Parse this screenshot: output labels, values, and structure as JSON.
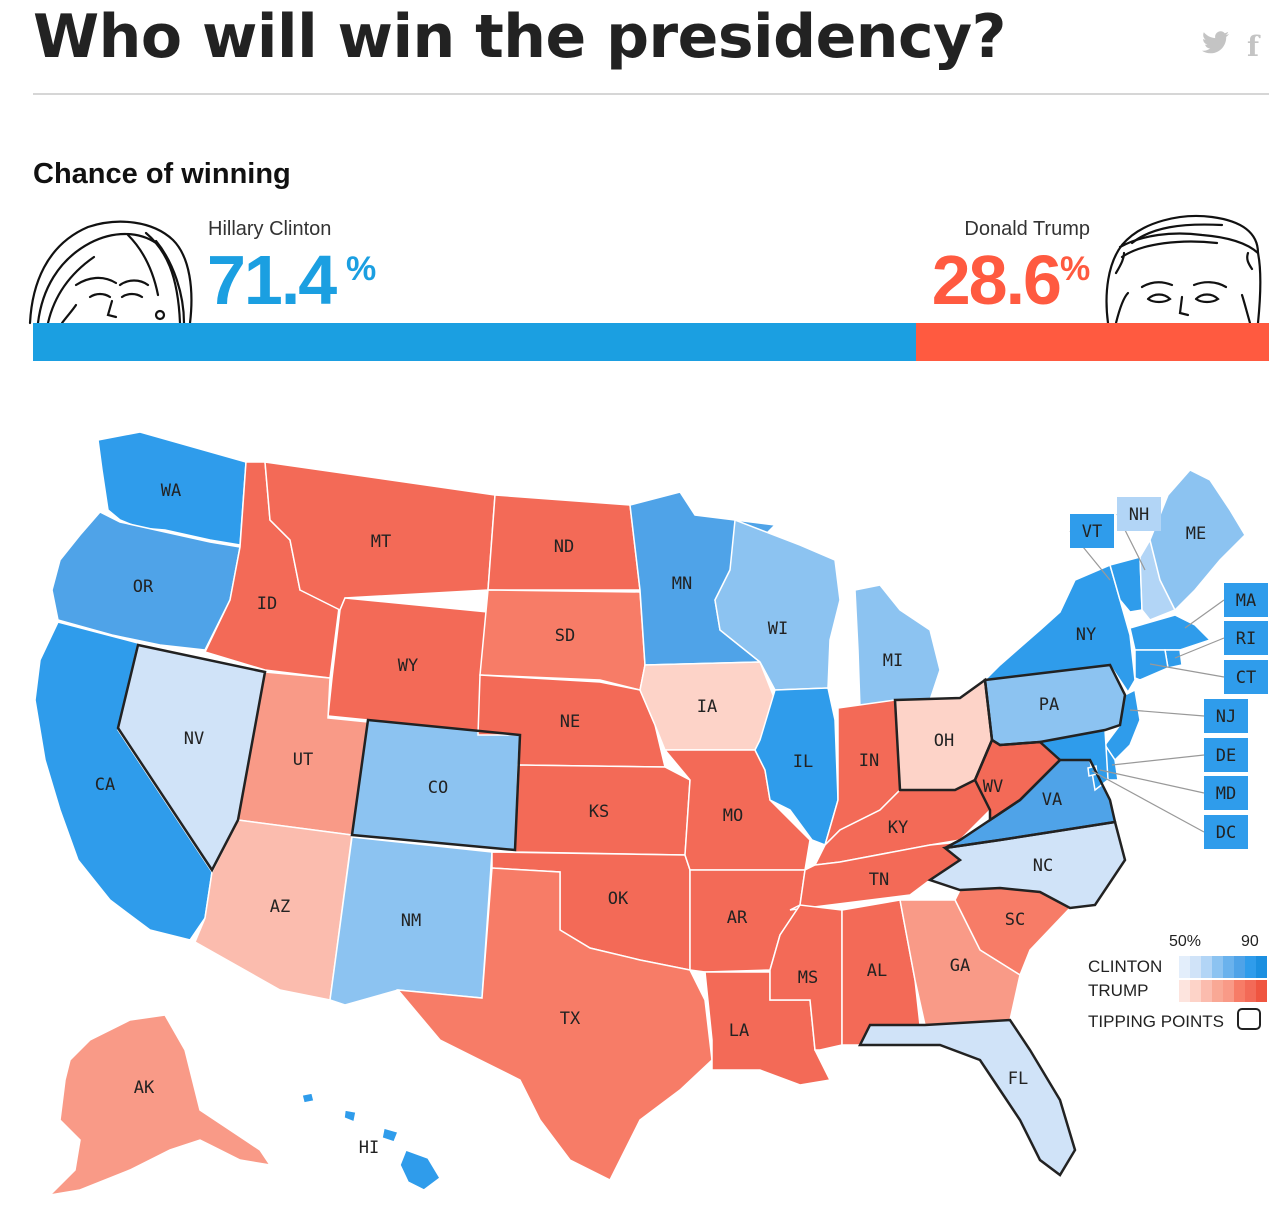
{
  "header": {
    "title": "Who will win the presidency?",
    "share_twitter_icon": "twitter-icon",
    "share_facebook_icon": "facebook-icon",
    "facebook_glyph": "f"
  },
  "chance": {
    "section_title": "Chance of winning",
    "clinton": {
      "name": "Hillary Clinton",
      "value": "71.4",
      "percent_sign": "%",
      "fraction": 0.714,
      "color": "#1b9fe1"
    },
    "trump": {
      "name": "Donald Trump",
      "value": "28.6",
      "percent_sign": "%",
      "fraction": 0.286,
      "color": "#ff5a40"
    }
  },
  "map": {
    "states": [
      {
        "abbr": "WA",
        "party": "D",
        "shade": 5
      },
      {
        "abbr": "OR",
        "party": "D",
        "shade": 4
      },
      {
        "abbr": "CA",
        "party": "D",
        "shade": 5
      },
      {
        "abbr": "NV",
        "party": "D",
        "shade": 1,
        "tipping": true
      },
      {
        "abbr": "ID",
        "party": "R",
        "shade": 5
      },
      {
        "abbr": "MT",
        "party": "R",
        "shade": 5
      },
      {
        "abbr": "WY",
        "party": "R",
        "shade": 5
      },
      {
        "abbr": "UT",
        "party": "R",
        "shade": 3
      },
      {
        "abbr": "AZ",
        "party": "R",
        "shade": 2
      },
      {
        "abbr": "CO",
        "party": "D",
        "shade": 3,
        "tipping": true
      },
      {
        "abbr": "NM",
        "party": "D",
        "shade": 3
      },
      {
        "abbr": "ND",
        "party": "R",
        "shade": 5
      },
      {
        "abbr": "SD",
        "party": "R",
        "shade": 4
      },
      {
        "abbr": "NE",
        "party": "R",
        "shade": 5
      },
      {
        "abbr": "KS",
        "party": "R",
        "shade": 5
      },
      {
        "abbr": "OK",
        "party": "R",
        "shade": 5
      },
      {
        "abbr": "TX",
        "party": "R",
        "shade": 4
      },
      {
        "abbr": "MN",
        "party": "D",
        "shade": 4
      },
      {
        "abbr": "IA",
        "party": "R",
        "shade": 1
      },
      {
        "abbr": "MO",
        "party": "R",
        "shade": 5
      },
      {
        "abbr": "AR",
        "party": "R",
        "shade": 5
      },
      {
        "abbr": "LA",
        "party": "R",
        "shade": 5
      },
      {
        "abbr": "WI",
        "party": "D",
        "shade": 3
      },
      {
        "abbr": "IL",
        "party": "D",
        "shade": 5
      },
      {
        "abbr": "MI",
        "party": "D",
        "shade": 3
      },
      {
        "abbr": "IN",
        "party": "R",
        "shade": 5
      },
      {
        "abbr": "OH",
        "party": "R",
        "shade": 1,
        "tipping": true
      },
      {
        "abbr": "KY",
        "party": "R",
        "shade": 5
      },
      {
        "abbr": "TN",
        "party": "R",
        "shade": 5
      },
      {
        "abbr": "MS",
        "party": "R",
        "shade": 5
      },
      {
        "abbr": "AL",
        "party": "R",
        "shade": 5
      },
      {
        "abbr": "WV",
        "party": "R",
        "shade": 5,
        "tipping": true
      },
      {
        "abbr": "VA",
        "party": "D",
        "shade": 4,
        "tipping": true
      },
      {
        "abbr": "NC",
        "party": "D",
        "shade": 1,
        "tipping": true
      },
      {
        "abbr": "SC",
        "party": "R",
        "shade": 4
      },
      {
        "abbr": "GA",
        "party": "R",
        "shade": 3
      },
      {
        "abbr": "FL",
        "party": "D",
        "shade": 1,
        "tipping": true
      },
      {
        "abbr": "PA",
        "party": "D",
        "shade": 3,
        "tipping": true
      },
      {
        "abbr": "NY",
        "party": "D",
        "shade": 5
      },
      {
        "abbr": "VT",
        "party": "D",
        "shade": 5
      },
      {
        "abbr": "NH",
        "party": "D",
        "shade": 2
      },
      {
        "abbr": "ME",
        "party": "D",
        "shade": 3
      },
      {
        "abbr": "MA",
        "party": "D",
        "shade": 5
      },
      {
        "abbr": "RI",
        "party": "D",
        "shade": 5
      },
      {
        "abbr": "CT",
        "party": "D",
        "shade": 5
      },
      {
        "abbr": "NJ",
        "party": "D",
        "shade": 5
      },
      {
        "abbr": "DE",
        "party": "D",
        "shade": 5
      },
      {
        "abbr": "MD",
        "party": "D",
        "shade": 5
      },
      {
        "abbr": "DC",
        "party": "D",
        "shade": 5
      },
      {
        "abbr": "AK",
        "party": "R",
        "shade": 3
      },
      {
        "abbr": "HI",
        "party": "D",
        "shade": 5
      }
    ],
    "colors": {
      "D": [
        "#e3eefb",
        "#d0e3f8",
        "#b2d5f6",
        "#8cc3f1",
        "#4fa3e8",
        "#2f9ceb"
      ],
      "R": [
        "#fde4de",
        "#fdd3c8",
        "#fbbcae",
        "#f99a87",
        "#f77c67",
        "#f36a57"
      ]
    }
  },
  "legend": {
    "scale_low": "50%",
    "scale_high": "90",
    "clinton_label": "CLINTON",
    "trump_label": "TRUMP",
    "tipping_label": "TIPPING POINTS",
    "clinton_swatches": [
      "#e3eefb",
      "#d0e3f8",
      "#b2d5f6",
      "#8cc3f1",
      "#6ab2ed",
      "#4fa3e8",
      "#2f9ceb",
      "#1b8fe0"
    ],
    "trump_swatches": [
      "#fde4de",
      "#fdd3c8",
      "#fbbcae",
      "#f9a895",
      "#f99a87",
      "#f77c67",
      "#f36a57",
      "#ef5540"
    ]
  }
}
